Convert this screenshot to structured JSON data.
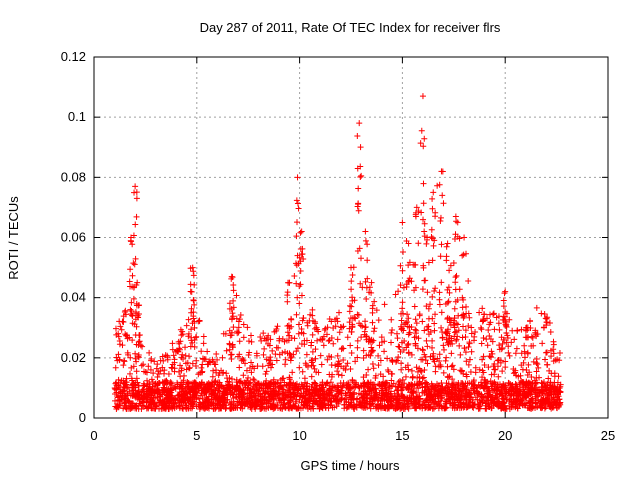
{
  "chart_data": {
    "type": "scatter",
    "title": "Day 287 of 2011, Rate Of TEC Index for receiver flrs",
    "xlabel": "GPS time / hours",
    "ylabel": "ROTI / TECUs",
    "xlim": [
      0,
      25
    ],
    "ylim": [
      0,
      0.12
    ],
    "xticks": [
      "0",
      "5",
      "10",
      "15",
      "20",
      "25"
    ],
    "yticks": [
      "0",
      "0.02",
      "0.04",
      "0.06",
      "0.08",
      "0.1",
      "0.12"
    ],
    "grid": true,
    "marker": "+",
    "color": "#ff0000",
    "legend": "none",
    "x_range_of_data": [
      1.0,
      22.7
    ],
    "envelope_hours": [
      1.0,
      1.5,
      1.8,
      2.0,
      2.1,
      2.4,
      3.0,
      3.5,
      4.0,
      4.5,
      4.8,
      5.2,
      5.8,
      6.3,
      6.7,
      7.0,
      7.5,
      8.0,
      8.5,
      9.0,
      9.5,
      9.9,
      10.1,
      10.5,
      11.0,
      11.5,
      12.0,
      12.5,
      12.9,
      13.2,
      13.5,
      14.0,
      14.5,
      15.0,
      15.3,
      15.7,
      16.0,
      16.2,
      16.5,
      16.9,
      17.2,
      17.6,
      18.0,
      18.5,
      19.0,
      19.5,
      20.0,
      20.5,
      21.0,
      21.5,
      22.0,
      22.7
    ],
    "envelope_peak_roti": [
      0.03,
      0.035,
      0.06,
      0.077,
      0.045,
      0.025,
      0.018,
      0.022,
      0.028,
      0.032,
      0.05,
      0.03,
      0.02,
      0.028,
      0.047,
      0.04,
      0.03,
      0.028,
      0.03,
      0.032,
      0.045,
      0.08,
      0.062,
      0.038,
      0.03,
      0.035,
      0.038,
      0.05,
      0.098,
      0.062,
      0.045,
      0.04,
      0.035,
      0.065,
      0.058,
      0.07,
      0.107,
      0.06,
      0.075,
      0.082,
      0.058,
      0.067,
      0.06,
      0.04,
      0.038,
      0.04,
      0.042,
      0.032,
      0.03,
      0.04,
      0.035,
      0.022
    ],
    "noise_floor_roti": [
      0.003,
      0.012
    ]
  }
}
